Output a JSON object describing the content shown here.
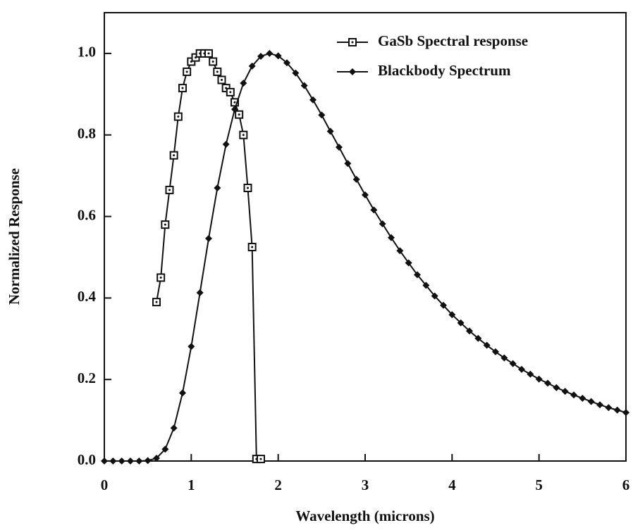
{
  "chart_data": {
    "type": "line",
    "xlabel": "Wavelength (microns)",
    "ylabel": "Normalized Response",
    "xlim": [
      0,
      6
    ],
    "xticks": [
      0,
      1,
      2,
      3,
      4,
      5,
      6
    ],
    "ylim": [
      0,
      1.1
    ],
    "yticks": [
      {
        "value": 0,
        "label": "0.0"
      },
      0.2,
      0.4,
      0.6,
      0.8,
      {
        "value": 1,
        "label": "1.0"
      }
    ],
    "grid": false,
    "legend": "upper right",
    "series": [
      {
        "name": "GaSb Spectral response",
        "color": "#111111",
        "marker": "square",
        "x": [
          0.6,
          0.65,
          0.7,
          0.75,
          0.8,
          0.85,
          0.9,
          0.95,
          1.0,
          1.05,
          1.1,
          1.15,
          1.2,
          1.25,
          1.3,
          1.35,
          1.4,
          1.45,
          1.5,
          1.55,
          1.6,
          1.65,
          1.7,
          1.75,
          1.8
        ],
        "values": [
          0.39,
          0.45,
          0.58,
          0.665,
          0.75,
          0.845,
          0.915,
          0.955,
          0.98,
          0.99,
          1.0,
          1.0,
          1.0,
          0.98,
          0.955,
          0.935,
          0.915,
          0.905,
          0.88,
          0.85,
          0.8,
          0.67,
          0.525,
          0.005,
          0.005
        ]
      },
      {
        "name": "Blackbody Spectrum",
        "color": "#111111",
        "marker": "diamond",
        "x": [
          0,
          0.1,
          0.2,
          0.3,
          0.4,
          0.5,
          0.6,
          0.7,
          0.8,
          0.9,
          1.0,
          1.1,
          1.2,
          1.3,
          1.4,
          1.5,
          1.6,
          1.7,
          1.8,
          1.9,
          2.0,
          2.1,
          2.2,
          2.3,
          2.4,
          2.5,
          2.6,
          2.7,
          2.8,
          2.9,
          3.0,
          3.1,
          3.2,
          3.3,
          3.4,
          3.5,
          3.6,
          3.7,
          3.8,
          3.9,
          4.0,
          4.1,
          4.2,
          4.3,
          4.4,
          4.5,
          4.6,
          4.7,
          4.8,
          4.9,
          5.0,
          5.1,
          5.2,
          5.3,
          5.4,
          5.5,
          5.6,
          5.7,
          5.8,
          5.9,
          6.0
        ],
        "values": [
          0,
          0,
          0,
          0,
          0,
          0.001,
          0.007,
          0.029,
          0.081,
          0.167,
          0.281,
          0.413,
          0.546,
          0.67,
          0.777,
          0.863,
          0.927,
          0.969,
          0.993,
          1.0,
          0.994,
          0.977,
          0.952,
          0.921,
          0.886,
          0.849,
          0.809,
          0.77,
          0.73,
          0.691,
          0.653,
          0.616,
          0.582,
          0.548,
          0.516,
          0.486,
          0.457,
          0.431,
          0.405,
          0.382,
          0.359,
          0.339,
          0.319,
          0.301,
          0.284,
          0.268,
          0.253,
          0.239,
          0.225,
          0.213,
          0.201,
          0.191,
          0.18,
          0.171,
          0.162,
          0.154,
          0.146,
          0.138,
          0.131,
          0.125,
          0.119
        ]
      }
    ]
  }
}
